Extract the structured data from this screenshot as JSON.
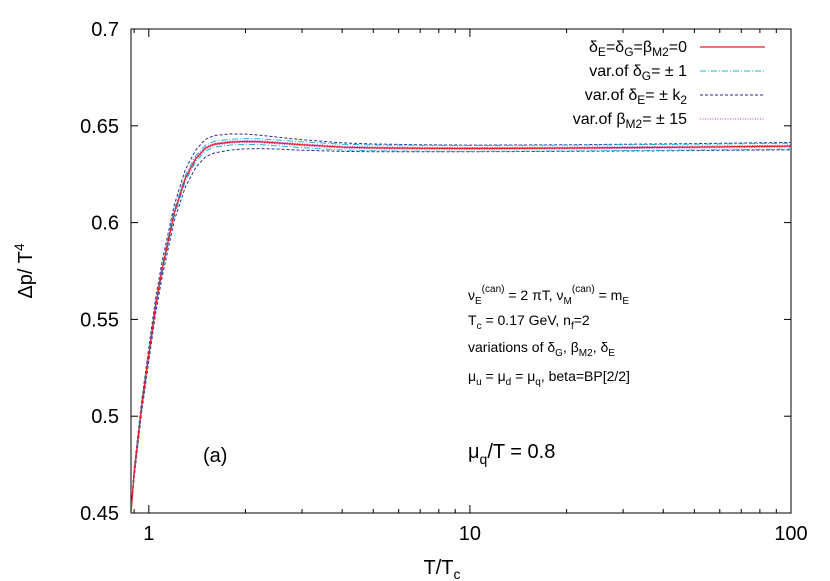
{
  "chart_data": {
    "type": "line",
    "x_scale": "log",
    "xlim": [
      0.88,
      100
    ],
    "ylim": [
      0.45,
      0.7
    ],
    "x_ticks": [
      "1",
      "10",
      "100"
    ],
    "y_ticks": [
      "0.45",
      "0.5",
      "0.55",
      "0.6",
      "0.65",
      "0.7"
    ],
    "xlabel": "T/T_c",
    "ylabel": "Δp/ T^4",
    "grid": false,
    "legend_position": "top-right",
    "panel_label": "(a)",
    "mu_label": "μq/T = 0.8",
    "annotations": [
      "νE(can) = 2 πT, νM(can) = mE",
      "Tc = 0.17 GeV, nf=2",
      "variations of δG, βM2, δE",
      "μu = μd = μq, beta=BP[2/2]"
    ],
    "series": [
      {
        "name": "δE=δG=βM2=0",
        "color": "#e8202a",
        "style": "solid",
        "x": [
          0.88,
          0.9,
          0.95,
          1.0,
          1.05,
          1.1,
          1.2,
          1.3,
          1.4,
          1.5,
          1.6,
          1.8,
          2.0,
          2.2,
          2.5,
          3.0,
          4.0,
          5.0,
          7.0,
          10,
          20,
          50,
          100
        ],
        "y": [
          0.45,
          0.4705,
          0.505,
          0.532,
          0.557,
          0.576,
          0.605,
          0.623,
          0.633,
          0.6385,
          0.6405,
          0.6416,
          0.6419,
          0.6418,
          0.6412,
          0.6402,
          0.639,
          0.6386,
          0.6384,
          0.6383,
          0.6385,
          0.639,
          0.6395
        ]
      },
      {
        "name": "var.of δG= ± 1",
        "color": "#18b8d8",
        "style": "dashdot",
        "x": [
          0.88,
          0.9,
          0.95,
          1.0,
          1.05,
          1.1,
          1.2,
          1.3,
          1.4,
          1.5,
          1.6,
          1.8,
          2.0,
          2.2,
          2.5,
          3.0,
          4.0,
          5.0,
          7.0,
          10,
          20,
          50,
          100
        ],
        "y": [
          0.45,
          0.469,
          0.5035,
          0.5305,
          0.5555,
          0.5745,
          0.6035,
          0.6215,
          0.6315,
          0.637,
          0.639,
          0.6401,
          0.6404,
          0.6403,
          0.6397,
          0.6387,
          0.6375,
          0.6371,
          0.6369,
          0.6368,
          0.637,
          0.6375,
          0.638
        ]
      },
      {
        "name": "var.of δG= ± 1",
        "color": "#18b8d8",
        "style": "dashdot",
        "x": [
          0.88,
          0.9,
          0.95,
          1.0,
          1.05,
          1.1,
          1.2,
          1.3,
          1.4,
          1.5,
          1.6,
          1.8,
          2.0,
          2.2,
          2.5,
          3.0,
          4.0,
          5.0,
          7.0,
          10,
          20,
          50,
          100
        ],
        "y": [
          0.45,
          0.472,
          0.5065,
          0.5335,
          0.5585,
          0.5775,
          0.6065,
          0.6245,
          0.6345,
          0.64,
          0.642,
          0.6431,
          0.6434,
          0.6433,
          0.6427,
          0.6417,
          0.6405,
          0.6401,
          0.6399,
          0.6398,
          0.64,
          0.6405,
          0.641
        ]
      },
      {
        "name": "var.of δE= ± k2",
        "color": "#2a2a9a",
        "style": "dotted",
        "x": [
          0.88,
          0.9,
          0.95,
          1.0,
          1.05,
          1.1,
          1.2,
          1.3,
          1.4,
          1.5,
          1.6,
          1.8,
          2.0,
          2.2,
          2.5,
          3.0,
          4.0,
          5.0,
          7.0,
          10,
          20,
          50,
          100
        ],
        "y": [
          0.45,
          0.468,
          0.502,
          0.5285,
          0.553,
          0.572,
          0.601,
          0.6185,
          0.6285,
          0.634,
          0.636,
          0.6375,
          0.6381,
          0.6382,
          0.638,
          0.6374,
          0.6368,
          0.6366,
          0.6366,
          0.6366,
          0.6368,
          0.6372,
          0.6376
        ]
      },
      {
        "name": "var.of δE= ± k2",
        "color": "#2a2a9a",
        "style": "dotted",
        "x": [
          0.88,
          0.9,
          0.95,
          1.0,
          1.05,
          1.1,
          1.2,
          1.3,
          1.4,
          1.5,
          1.6,
          1.8,
          2.0,
          2.2,
          2.5,
          3.0,
          4.0,
          5.0,
          7.0,
          10,
          20,
          50,
          100
        ],
        "y": [
          0.45,
          0.473,
          0.508,
          0.5355,
          0.561,
          0.58,
          0.609,
          0.6275,
          0.6375,
          0.643,
          0.645,
          0.6458,
          0.6457,
          0.6452,
          0.6442,
          0.6428,
          0.6412,
          0.6406,
          0.6402,
          0.64,
          0.6402,
          0.6408,
          0.6414
        ]
      },
      {
        "name": "var.of βM2= ± 15",
        "color": "#d23ad2",
        "style": "finedot",
        "x": [
          0.88,
          0.9,
          0.95,
          1.0,
          1.05,
          1.1,
          1.2,
          1.3,
          1.4,
          1.5,
          1.6,
          1.8,
          2.0,
          2.2,
          2.5,
          3.0,
          4.0,
          5.0,
          7.0,
          10,
          20,
          50,
          100
        ],
        "y": [
          0.45,
          0.47,
          0.5045,
          0.5315,
          0.5565,
          0.5755,
          0.6045,
          0.6225,
          0.6325,
          0.638,
          0.64,
          0.6411,
          0.6414,
          0.6413,
          0.6407,
          0.6397,
          0.6385,
          0.6381,
          0.6379,
          0.6378,
          0.638,
          0.6385,
          0.639
        ]
      },
      {
        "name": "var.of βM2= ± 15",
        "color": "#d23ad2",
        "style": "finedot",
        "x": [
          0.88,
          0.9,
          0.95,
          1.0,
          1.05,
          1.1,
          1.2,
          1.3,
          1.4,
          1.5,
          1.6,
          1.8,
          2.0,
          2.2,
          2.5,
          3.0,
          4.0,
          5.0,
          7.0,
          10,
          20,
          50,
          100
        ],
        "y": [
          0.45,
          0.471,
          0.5055,
          0.5325,
          0.5575,
          0.5765,
          0.6055,
          0.6235,
          0.6335,
          0.639,
          0.641,
          0.6421,
          0.6424,
          0.6423,
          0.6417,
          0.6407,
          0.6395,
          0.6391,
          0.6389,
          0.6388,
          0.639,
          0.6395,
          0.64
        ]
      }
    ]
  }
}
